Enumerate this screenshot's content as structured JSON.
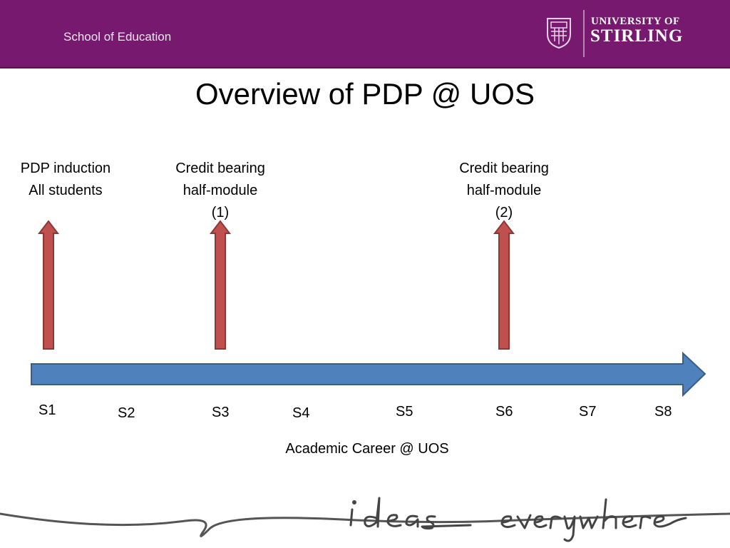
{
  "header": {
    "school": "School of Education",
    "university_line1": "UNIVERSITY OF",
    "university_line2": "STIRLING",
    "brand_color": "#76196f"
  },
  "title": "Overview of PDP @ UOS",
  "milestones": [
    {
      "lines": [
        "PDP induction",
        "All students"
      ],
      "semester": "S1"
    },
    {
      "lines": [
        "Credit bearing",
        "half-module",
        "(1)"
      ],
      "semester": "S3"
    },
    {
      "lines": [
        "Credit bearing",
        "half-module",
        "(2)"
      ],
      "semester": "S6"
    }
  ],
  "semesters": [
    "S1",
    "S2",
    "S3",
    "S4",
    "S5",
    "S6",
    "S7",
    "S8"
  ],
  "timeline_label": "Academic Career @ UOS",
  "tagline": "ideas everywhere",
  "colors": {
    "arrow_up": "#c0504d",
    "arrow_up_border": "#8c3836",
    "timeline": "#4f81bd",
    "timeline_border": "#385d8a"
  }
}
